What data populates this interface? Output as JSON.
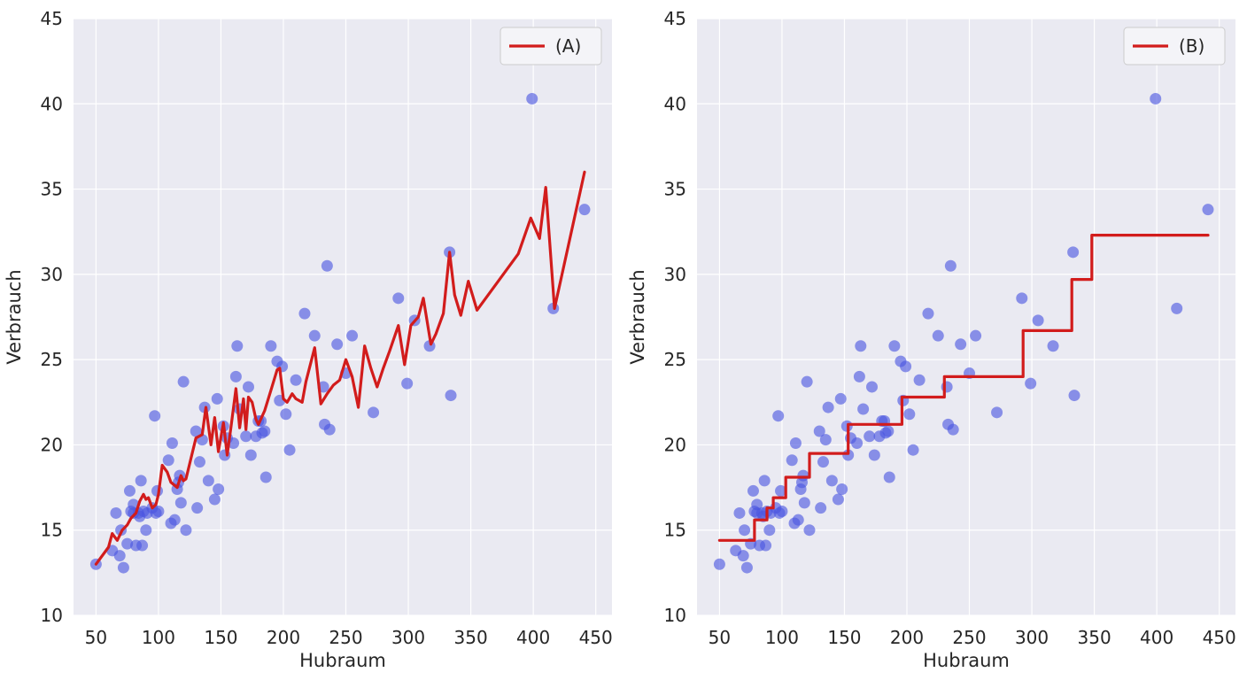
{
  "chart_data": [
    {
      "type": "line",
      "panel": "left",
      "xlabel": "Hubraum",
      "ylabel": "Verbrauch",
      "xlim": [
        32,
        463
      ],
      "ylim": [
        10,
        45
      ],
      "xticks": [
        50,
        100,
        150,
        200,
        250,
        300,
        350,
        400,
        450
      ],
      "yticks": [
        10,
        15,
        20,
        25,
        30,
        35,
        40,
        45
      ],
      "grid": true,
      "legend": {
        "position": "top-right",
        "entries": [
          "(A)"
        ]
      },
      "colors": {
        "scatter": "#4a56e0",
        "line": "#d21c1c",
        "background": "#eaeaf2"
      },
      "scatter": {
        "x": [
          50,
          63,
          66,
          69,
          70,
          72,
          75,
          77,
          78,
          80,
          80,
          82,
          84,
          85,
          86,
          87,
          88,
          90,
          91,
          95,
          97,
          98,
          99,
          100,
          108,
          110,
          111,
          113,
          115,
          116,
          117,
          118,
          120,
          122,
          130,
          131,
          133,
          135,
          137,
          140,
          145,
          147,
          148,
          152,
          153,
          155,
          160,
          162,
          163,
          165,
          170,
          172,
          174,
          178,
          180,
          182,
          183,
          185,
          186,
          190,
          195,
          197,
          199,
          202,
          205,
          210,
          217,
          225,
          232,
          233,
          235,
          237,
          243,
          250,
          255,
          272,
          292,
          299,
          305,
          317,
          333,
          334,
          399,
          416,
          441
        ],
        "y": [
          13.0,
          13.8,
          16.0,
          13.5,
          15.0,
          12.8,
          14.2,
          17.3,
          16.1,
          16.5,
          16.0,
          14.1,
          16.0,
          15.8,
          17.9,
          14.1,
          16.1,
          15.0,
          16.0,
          16.3,
          21.7,
          16.0,
          17.3,
          16.1,
          19.1,
          15.4,
          20.1,
          15.6,
          17.4,
          17.8,
          18.2,
          16.6,
          23.7,
          15.0,
          20.8,
          16.3,
          19.0,
          20.3,
          22.2,
          17.9,
          16.8,
          22.7,
          17.4,
          21.1,
          19.4,
          20.4,
          20.1,
          24.0,
          25.8,
          22.1,
          20.5,
          23.4,
          19.4,
          20.5,
          21.4,
          21.4,
          20.7,
          20.8,
          18.1,
          25.8,
          24.9,
          22.6,
          24.6,
          21.8,
          19.7,
          23.8,
          27.7,
          26.4,
          23.4,
          21.2,
          30.5,
          20.9,
          25.9,
          24.2,
          26.4,
          21.9,
          28.6,
          23.6,
          27.3,
          25.8,
          31.3,
          22.9,
          40.3,
          28.0,
          33.8
        ]
      },
      "series": [
        {
          "name": "(A)",
          "x": [
            50,
            60,
            63,
            67,
            71,
            75,
            78,
            82,
            85,
            88,
            90,
            92,
            95,
            98,
            100,
            103,
            107,
            110,
            115,
            118,
            120,
            122,
            130,
            135,
            138,
            142,
            145,
            148,
            152,
            155,
            158,
            162,
            165,
            168,
            170,
            172,
            175,
            178,
            180,
            185,
            190,
            195,
            197,
            200,
            203,
            207,
            210,
            215,
            218,
            225,
            230,
            235,
            240,
            245,
            250,
            255,
            260,
            265,
            270,
            275,
            280,
            285,
            292,
            297,
            302,
            308,
            312,
            318,
            322,
            328,
            333,
            337,
            342,
            348,
            355,
            388,
            398,
            405,
            410,
            417,
            441
          ],
          "y": [
            13.0,
            14.0,
            14.8,
            14.4,
            15.0,
            15.3,
            15.7,
            16.0,
            16.7,
            17.1,
            16.8,
            16.9,
            16.3,
            16.5,
            17.1,
            18.8,
            18.4,
            17.8,
            17.5,
            18.2,
            17.9,
            18.0,
            20.4,
            20.6,
            22.2,
            20.0,
            21.6,
            19.6,
            21.3,
            19.4,
            21.0,
            23.3,
            21.0,
            22.7,
            20.9,
            22.8,
            22.5,
            21.5,
            21.2,
            22.0,
            23.2,
            24.4,
            24.5,
            22.7,
            22.5,
            23.0,
            22.7,
            22.5,
            23.7,
            25.7,
            22.4,
            23.0,
            23.5,
            23.8,
            25.0,
            24.0,
            22.2,
            25.8,
            24.5,
            23.4,
            24.5,
            25.5,
            27.0,
            24.7,
            27.0,
            27.5,
            28.6,
            25.9,
            26.5,
            27.7,
            31.3,
            28.8,
            27.6,
            29.6,
            27.9,
            31.2,
            33.3,
            32.1,
            35.1,
            28.0,
            36.0
          ]
        }
      ]
    },
    {
      "type": "line",
      "panel": "right",
      "xlabel": "Hubraum",
      "ylabel": "Verbrauch",
      "xlim": [
        32,
        463
      ],
      "ylim": [
        10,
        45
      ],
      "xticks": [
        50,
        100,
        150,
        200,
        250,
        300,
        350,
        400,
        450
      ],
      "yticks": [
        10,
        15,
        20,
        25,
        30,
        35,
        40,
        45
      ],
      "grid": true,
      "legend": {
        "position": "top-right",
        "entries": [
          "(B)"
        ]
      },
      "colors": {
        "scatter": "#4a56e0",
        "line": "#d21c1c",
        "background": "#eaeaf2"
      },
      "scatter": {
        "x": [
          50,
          63,
          66,
          69,
          70,
          72,
          75,
          77,
          78,
          80,
          80,
          82,
          84,
          85,
          86,
          87,
          88,
          90,
          91,
          95,
          97,
          98,
          99,
          100,
          108,
          110,
          111,
          113,
          115,
          116,
          117,
          118,
          120,
          122,
          130,
          131,
          133,
          135,
          137,
          140,
          145,
          147,
          148,
          152,
          153,
          155,
          160,
          162,
          163,
          165,
          170,
          172,
          174,
          178,
          180,
          182,
          183,
          185,
          186,
          190,
          195,
          197,
          199,
          202,
          205,
          210,
          217,
          225,
          232,
          233,
          235,
          237,
          243,
          250,
          255,
          272,
          292,
          299,
          305,
          317,
          333,
          334,
          399,
          416,
          441
        ],
        "y": [
          13.0,
          13.8,
          16.0,
          13.5,
          15.0,
          12.8,
          14.2,
          17.3,
          16.1,
          16.5,
          16.0,
          14.1,
          16.0,
          15.8,
          17.9,
          14.1,
          16.1,
          15.0,
          16.0,
          16.3,
          21.7,
          16.0,
          17.3,
          16.1,
          19.1,
          15.4,
          20.1,
          15.6,
          17.4,
          17.8,
          18.2,
          16.6,
          23.7,
          15.0,
          20.8,
          16.3,
          19.0,
          20.3,
          22.2,
          17.9,
          16.8,
          22.7,
          17.4,
          21.1,
          19.4,
          20.4,
          20.1,
          24.0,
          25.8,
          22.1,
          20.5,
          23.4,
          19.4,
          20.5,
          21.4,
          21.4,
          20.7,
          20.8,
          18.1,
          25.8,
          24.9,
          22.6,
          24.6,
          21.8,
          19.7,
          23.8,
          27.7,
          26.4,
          23.4,
          21.2,
          30.5,
          20.9,
          25.9,
          24.2,
          26.4,
          21.9,
          28.6,
          23.6,
          27.3,
          25.8,
          31.3,
          22.9,
          40.3,
          28.0,
          33.8
        ]
      },
      "series": [
        {
          "name": "(B)",
          "x": [
            50,
            78,
            78,
            88,
            88,
            93,
            93,
            103,
            103,
            122,
            122,
            153,
            153,
            196,
            196,
            230,
            230,
            293,
            293,
            332,
            332,
            348,
            348,
            441
          ],
          "y": [
            14.4,
            14.4,
            15.6,
            15.6,
            16.3,
            16.3,
            16.9,
            16.9,
            18.1,
            18.1,
            19.5,
            19.5,
            21.2,
            21.2,
            22.8,
            22.8,
            24.0,
            24.0,
            26.7,
            26.7,
            29.7,
            29.7,
            32.3,
            32.3
          ]
        }
      ]
    }
  ]
}
